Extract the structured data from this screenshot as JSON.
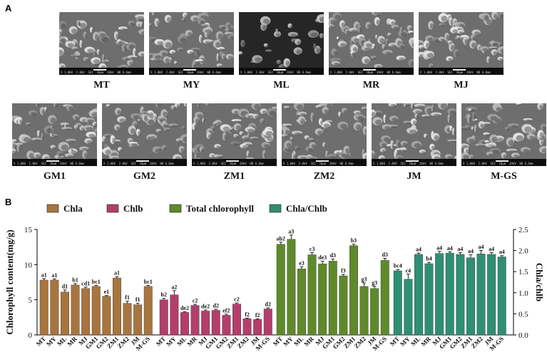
{
  "panelA": {
    "label": "A",
    "row1": [
      {
        "name": "MT",
        "info": "X 1,000  2.0kV  SEI  10μm  20kV  WD 6.6mm"
      },
      {
        "name": "MY",
        "info": "X 1,000  2.0kV  SEI  10μm  20kV  WD 6.6mm"
      },
      {
        "name": "ML",
        "info": "X 1,000  2.0kV  SEI  10μm  20kV  WD 6.6mm"
      },
      {
        "name": "MR",
        "info": "X 1,000  2.0kV  SEI  10μm  20kV  WD 6.6mm"
      },
      {
        "name": "MJ",
        "info": "X 1,000  2.0kV  SEI  10μm  20kV  WD 6.6mm"
      }
    ],
    "row2": [
      {
        "name": "GM1",
        "info": "X 1,000  2.0kV  SEI  10μm  20kV  WD 6.6mm"
      },
      {
        "name": "GM2",
        "info": "X 1,000  2.0kV  SEI  10μm  20kV  WD 6.6mm"
      },
      {
        "name": "ZM1",
        "info": "X 1,000  2.0kV  SEI  10μm  20kV  WD 6.6mm"
      },
      {
        "name": "ZM2",
        "info": "X 1,000  2.0kV  SEI  10μm  20kV  WD 6.6mm"
      },
      {
        "name": "JM",
        "info": "X 1,000  2.0kV  SEI  10μm  20kV  WD 6.6mm"
      },
      {
        "name": "M-GS",
        "info": "X 1,000  2.0kV  SEI  10μm  20kV  WD 6.6mm"
      }
    ]
  },
  "panelB": {
    "label": "B",
    "legend_position": "top",
    "colors": {
      "Chla": "#a8753f",
      "Chlb": "#b43e6b",
      "Total chlorophyll": "#5e8a2a",
      "Chla/Chlb": "#2f8f73"
    }
  },
  "chart_data": {
    "type": "bar",
    "ylabel": "Chlorophyll content(mg/g)",
    "y2label": "Chla/chlb",
    "ylim": [
      0,
      15
    ],
    "y2lim": [
      0,
      2.5
    ],
    "yticks": [
      "0",
      "5",
      "10",
      "15"
    ],
    "y2ticks": [
      "0.0",
      "0.5",
      "1.0",
      "1.5",
      "2.0",
      "2.5"
    ],
    "grid": false,
    "categories": [
      "MT",
      "MY",
      "ML",
      "MR",
      "MJ",
      "GM1",
      "GM2",
      "ZM1",
      "ZM2",
      "JM",
      "M-GS"
    ],
    "series": [
      {
        "name": "Chla",
        "axis": "left",
        "values": [
          7.8,
          7.8,
          6.1,
          7.1,
          6.6,
          6.9,
          5.5,
          8.1,
          4.5,
          4.3,
          6.9
        ],
        "errors": [
          0.2,
          0.15,
          0.3,
          0.2,
          0.2,
          0.15,
          0.1,
          0.2,
          0.3,
          0.2,
          0.15
        ],
        "labels": [
          "a1",
          "a1",
          "d1",
          "b1",
          "cd1",
          "bc1",
          "e1",
          "a1",
          "f1",
          "f1",
          "bc1"
        ]
      },
      {
        "name": "Chlb",
        "axis": "left",
        "values": [
          5.0,
          5.7,
          3.2,
          4.2,
          3.4,
          3.5,
          2.8,
          4.4,
          2.3,
          2.2,
          3.7
        ],
        "errors": [
          0.2,
          0.6,
          0.1,
          0.15,
          0.15,
          0.15,
          0.15,
          0.15,
          0.1,
          0.1,
          0.15
        ],
        "labels": [
          "b2",
          "a2",
          "de2",
          "c2",
          "de2",
          "d2",
          "ef2",
          "c2",
          "f2",
          "f2",
          "d2"
        ]
      },
      {
        "name": "Total chlorophyll",
        "axis": "left",
        "values": [
          12.9,
          13.6,
          9.4,
          11.4,
          10.1,
          10.5,
          8.4,
          12.7,
          6.9,
          6.6,
          10.6
        ],
        "errors": [
          0.3,
          0.6,
          0.3,
          0.3,
          0.4,
          0.3,
          0.2,
          0.2,
          0.5,
          0.3,
          0.3
        ],
        "labels": [
          "ab2",
          "a3",
          "e3",
          "c3",
          "de3",
          "d3",
          "f3",
          "b3",
          "g3",
          "g3",
          "d3"
        ]
      },
      {
        "name": "Chla/Chlb",
        "axis": "right",
        "values": [
          1.52,
          1.32,
          1.91,
          1.69,
          1.93,
          1.94,
          1.91,
          1.83,
          1.92,
          1.91,
          1.85
        ],
        "errors": [
          0.03,
          0.12,
          0.03,
          0.03,
          0.05,
          0.03,
          0.04,
          0.07,
          0.08,
          0.04,
          0.03
        ],
        "labels": [
          "bc4",
          "c4",
          "a4",
          "b4",
          "a4",
          "a4",
          "a4",
          "a4",
          "a4",
          "a4",
          "a4"
        ]
      }
    ]
  }
}
